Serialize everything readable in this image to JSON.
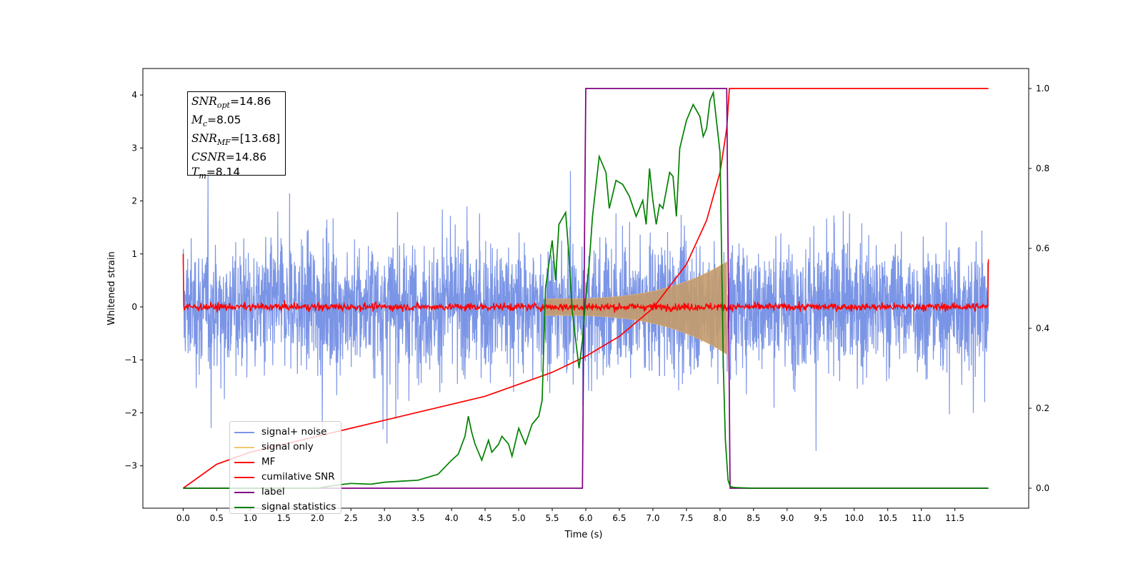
{
  "chart_data": {
    "type": "line",
    "xlabel": "Time (s)",
    "ylabel": "Whitened strain",
    "xlim": [
      -0.6,
      12.6
    ],
    "ylim": [
      -3.8,
      4.5
    ],
    "y2lim": [
      -0.05,
      1.05
    ],
    "x_ticks": [
      "0.0",
      "0.5",
      "1.0",
      "1.5",
      "2.0",
      "2.5",
      "3.0",
      "3.5",
      "4.0",
      "4.5",
      "5.0",
      "5.5",
      "6.0",
      "6.5",
      "7.0",
      "7.5",
      "8.0",
      "8.5",
      "9.0",
      "9.5",
      "10.0",
      "10.5",
      "11.0",
      "11.5"
    ],
    "y_ticks": [
      "4",
      "3",
      "2",
      "1",
      "0",
      "−1",
      "−2",
      "−3"
    ],
    "y2_ticks": [
      "1.0",
      "0.8",
      "0.6",
      "0.4",
      "0.2",
      "0.0"
    ],
    "grid": false,
    "legend_position": "lower-left",
    "annotation": {
      "snr_opt": "=14.86",
      "mc": "=8.05",
      "snr_mf": "=[13.68]",
      "csnr": "=14.86",
      "tm": "=8.14"
    },
    "series": [
      {
        "name": "signal+ noise",
        "color": "#7b95e6",
        "description_values": {
          "range": [
            -3.3,
            4.1
          ],
          "x_range": [
            0.0,
            12.0
          ]
        }
      },
      {
        "name": "signal only",
        "color": "#f5c66a",
        "envelope": {
          "t_start": 5.4,
          "t_merger": 8.1,
          "amp_start": 0.15,
          "amp_end": 0.85
        }
      },
      {
        "name": "MF",
        "color": "#ff0000",
        "baseline_noise_amp": 0.1,
        "edges": [
          1.0,
          0.9
        ]
      },
      {
        "name": "cumilative SNR",
        "color": "#ff0000",
        "axis": "right",
        "x": [
          0.0,
          0.5,
          1.0,
          1.5,
          2.0,
          2.5,
          3.0,
          3.5,
          4.0,
          4.5,
          5.0,
          5.5,
          6.0,
          6.5,
          7.0,
          7.5,
          7.8,
          8.0,
          8.1,
          8.14,
          12.0
        ],
        "y": [
          0.0,
          0.06,
          0.09,
          0.11,
          0.13,
          0.15,
          0.17,
          0.19,
          0.21,
          0.23,
          0.26,
          0.29,
          0.33,
          0.38,
          0.45,
          0.56,
          0.67,
          0.79,
          0.9,
          1.0,
          1.0
        ]
      },
      {
        "name": "label",
        "color": "#800080",
        "axis": "right",
        "x": [
          0.0,
          5.95,
          6.0,
          8.1,
          8.15,
          12.0
        ],
        "y": [
          0.0,
          0.0,
          1.0,
          1.0,
          0.0,
          0.0
        ]
      },
      {
        "name": "signal statistics",
        "color": "#008000",
        "axis": "right",
        "x": [
          0.0,
          2.0,
          2.3,
          2.5,
          2.8,
          3.0,
          3.3,
          3.5,
          3.8,
          4.0,
          4.1,
          4.2,
          4.25,
          4.3,
          4.35,
          4.45,
          4.55,
          4.6,
          4.7,
          4.75,
          4.85,
          4.9,
          5.0,
          5.1,
          5.2,
          5.3,
          5.35,
          5.4,
          5.45,
          5.5,
          5.55,
          5.6,
          5.7,
          5.75,
          5.8,
          5.9,
          5.95,
          6.0,
          6.05,
          6.1,
          6.2,
          6.3,
          6.35,
          6.45,
          6.55,
          6.65,
          6.75,
          6.85,
          6.9,
          6.95,
          7.0,
          7.05,
          7.1,
          7.15,
          7.25,
          7.3,
          7.35,
          7.4,
          7.5,
          7.6,
          7.7,
          7.75,
          7.8,
          7.85,
          7.9,
          8.0,
          8.05,
          8.08,
          8.12,
          8.15,
          8.2,
          8.3,
          8.5,
          12.0
        ],
        "y": [
          0.0,
          0.0,
          0.008,
          0.012,
          0.01,
          0.015,
          0.018,
          0.02,
          0.035,
          0.07,
          0.085,
          0.13,
          0.18,
          0.14,
          0.11,
          0.07,
          0.12,
          0.09,
          0.11,
          0.13,
          0.11,
          0.08,
          0.15,
          0.11,
          0.16,
          0.18,
          0.22,
          0.5,
          0.56,
          0.62,
          0.52,
          0.66,
          0.69,
          0.58,
          0.44,
          0.3,
          0.37,
          0.48,
          0.56,
          0.68,
          0.83,
          0.79,
          0.7,
          0.77,
          0.76,
          0.73,
          0.68,
          0.72,
          0.66,
          0.8,
          0.72,
          0.66,
          0.71,
          0.7,
          0.79,
          0.78,
          0.68,
          0.85,
          0.92,
          0.96,
          0.93,
          0.88,
          0.9,
          0.97,
          0.99,
          0.84,
          0.3,
          0.12,
          0.02,
          0.005,
          0.002,
          0.001,
          0.0,
          0.0
        ]
      }
    ]
  }
}
